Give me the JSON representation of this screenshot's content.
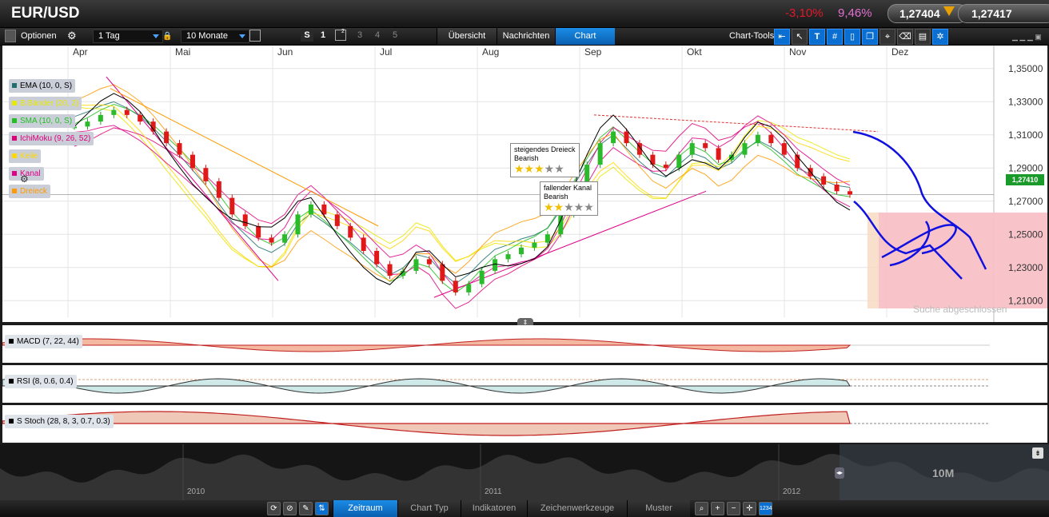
{
  "header": {
    "title": "EUR/USD",
    "change_abs": "-3,10%",
    "change_pct": "9,46%",
    "bid": "1,27404",
    "ask": "1,27417"
  },
  "toolbar": {
    "options_label": "Optionen",
    "interval_value": "1 Tag",
    "range_value": "10 Monate",
    "s_label": "S",
    "num_buttons": [
      "1",
      "2",
      "3",
      "4",
      "5"
    ],
    "tabs": [
      "Übersicht",
      "Nachrichten",
      "Chart"
    ],
    "charttools_label": "Chart-Tools"
  },
  "chart_data": {
    "type": "line",
    "title": "EUR/USD",
    "x_months": [
      "Apr",
      "Mai",
      "Jun",
      "Jul",
      "Aug",
      "Sep",
      "Okt",
      "Nov",
      "Dez"
    ],
    "y_ticks": [
      "1,35000",
      "1,33000",
      "1,31000",
      "1,29000",
      "1,27000",
      "1,25000",
      "1,23000",
      "1,21000"
    ],
    "ylim": [
      1.2,
      1.36
    ],
    "last_price_label": "1,27410",
    "last_price": 1.2741,
    "overlays": [
      {
        "name": "EMA (10, 0, S)",
        "color": "#1f6f6f"
      },
      {
        "name": "B.Bänder (20, 2)",
        "color": "#e8e800"
      },
      {
        "name": "SMA (10, 0, S)",
        "color": "#20c020"
      },
      {
        "name": "IchiMoku (9, 26, 52)",
        "color": "#e0007a"
      },
      {
        "name": "Keile",
        "color": "#ffd800"
      },
      {
        "name": "Kanal",
        "color": "#e0008a"
      },
      {
        "name": "Dreieck",
        "color": "#ff9a00"
      }
    ],
    "close_series": [
      1.315,
      1.318,
      1.322,
      1.325,
      1.322,
      1.318,
      1.312,
      1.305,
      1.298,
      1.29,
      1.282,
      1.272,
      1.262,
      1.255,
      1.248,
      1.245,
      1.25,
      1.262,
      1.268,
      1.262,
      1.255,
      1.248,
      1.24,
      1.232,
      1.225,
      1.228,
      1.235,
      1.232,
      1.222,
      1.215,
      1.22,
      1.228,
      1.235,
      1.238,
      1.242,
      1.245,
      1.25,
      1.262,
      1.278,
      1.292,
      1.305,
      1.312,
      1.305,
      1.298,
      1.292,
      1.29,
      1.298,
      1.305,
      1.302,
      1.295,
      1.298,
      1.305,
      1.31,
      1.305,
      1.298,
      1.29,
      1.285,
      1.28,
      1.276,
      1.274
    ],
    "patterns": [
      {
        "label": "steigendes Dreieck",
        "sublabel": "Bearish",
        "rating": 3,
        "max": 5
      },
      {
        "label": "fallender Kanal",
        "sublabel": "Bearish",
        "rating": 2,
        "max": 5
      }
    ],
    "status_text": "Suche abgeschlossen"
  },
  "indicators": [
    {
      "name": "MACD (7, 22, 44)"
    },
    {
      "name": "RSI (8, 0.6, 0.4)"
    },
    {
      "name": "S Stoch (28, 8, 3, 0.7, 0.3)"
    }
  ],
  "navigator": {
    "years": [
      "2010",
      "2011",
      "2012"
    ],
    "zoom_label": "10M"
  },
  "bottombar": {
    "tabs": [
      "Zeitraum",
      "Chart Typ",
      "Indikatoren",
      "Zeichenwerkzeuge",
      "Muster"
    ]
  },
  "colors": {
    "accent": "#0a6fd0",
    "negative": "#e0182a",
    "pink": "#e070d0",
    "last_price_bg": "#1a9a2a"
  }
}
